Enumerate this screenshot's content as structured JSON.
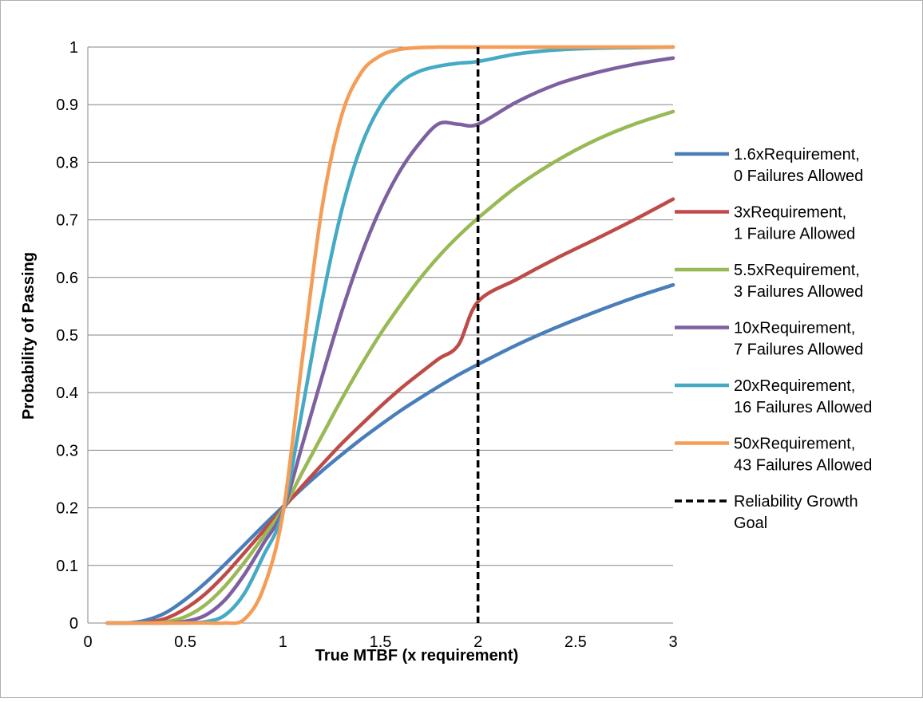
{
  "chart_data": {
    "type": "line",
    "title": "",
    "xlabel": "True MTBF (x requirement)",
    "ylabel": "Probability of Passing",
    "xlim": [
      0,
      3
    ],
    "ylim": [
      0,
      1
    ],
    "x_ticks": [
      "0",
      "0.5",
      "1",
      "1.5",
      "2",
      "2.5",
      "3"
    ],
    "y_ticks": [
      "0",
      "0.1",
      "0.2",
      "0.3",
      "0.4",
      "0.5",
      "0.6",
      "0.7",
      "0.8",
      "0.9",
      "1"
    ],
    "grid": "horizontal",
    "legend_position": "right",
    "x": [
      0.1,
      0.2,
      0.3,
      0.4,
      0.5,
      0.6,
      0.7,
      0.8,
      0.9,
      1.0,
      1.1,
      1.2,
      1.3,
      1.4,
      1.5,
      1.6,
      1.7,
      1.8,
      1.9,
      2.0,
      2.2,
      2.4,
      2.6,
      2.8,
      3.0
    ],
    "series": [
      {
        "name": "1.6xRequirement, 0 Failures Allowed",
        "label_lines": [
          "1.6xRequirement,",
          "0 Failures Allowed"
        ],
        "color": "#4a7ebb",
        "values": [
          0.0,
          0.0,
          0.005,
          0.018,
          0.041,
          0.069,
          0.101,
          0.135,
          0.169,
          0.202,
          0.234,
          0.264,
          0.292,
          0.319,
          0.344,
          0.368,
          0.39,
          0.411,
          0.431,
          0.449,
          0.483,
          0.513,
          0.54,
          0.565,
          0.587
        ]
      },
      {
        "name": "3xRequirement, 1 Failure Allowed",
        "label_lines": [
          "3xRequirement,",
          "1 Failure Allowed"
        ],
        "color": "#be4b48",
        "values": [
          0.0,
          0.0,
          0.001,
          0.008,
          0.025,
          0.05,
          0.083,
          0.121,
          0.16,
          0.199,
          0.238,
          0.275,
          0.311,
          0.344,
          0.376,
          0.406,
          0.433,
          0.459,
          0.483,
          0.558,
          0.597,
          0.633,
          0.666,
          0.7,
          0.736
        ]
      },
      {
        "name": "5.5xRequirement, 3 Failures Allowed",
        "label_lines": [
          "5.5xRequirement,",
          "3 Failures Allowed"
        ],
        "color": "#98b954",
        "values": [
          0.0,
          0.0,
          0.0,
          0.002,
          0.011,
          0.031,
          0.063,
          0.104,
          0.15,
          0.198,
          0.262,
          0.325,
          0.388,
          0.447,
          0.502,
          0.551,
          0.597,
          0.637,
          0.672,
          0.703,
          0.758,
          0.802,
          0.838,
          0.866,
          0.888
        ]
      },
      {
        "name": "10xRequirement, 7 Failures Allowed",
        "label_lines": [
          "10xRequirement,",
          "7 Failures Allowed"
        ],
        "color": "#7d60a0",
        "values": [
          0.0,
          0.0,
          0.0,
          0.0,
          0.003,
          0.013,
          0.039,
          0.083,
          0.138,
          0.195,
          0.31,
          0.427,
          0.539,
          0.638,
          0.72,
          0.785,
          0.833,
          0.867,
          0.866,
          0.866,
          0.905,
          0.935,
          0.955,
          0.97,
          0.981
        ]
      },
      {
        "name": "20xRequirement, 16 Failures Allowed",
        "label_lines": [
          "20xRequirement,",
          "16 Failures Allowed"
        ],
        "color": "#46aac5",
        "values": [
          0.0,
          0.0,
          0.0,
          0.0,
          0.0,
          0.002,
          0.013,
          0.05,
          0.117,
          0.193,
          0.372,
          0.558,
          0.715,
          0.827,
          0.898,
          0.938,
          0.958,
          0.967,
          0.972,
          0.975,
          0.988,
          0.995,
          0.998,
          0.999,
          1.0
        ]
      },
      {
        "name": "50xRequirement, 43 Failures Allowed",
        "label_lines": [
          "50xRequirement,",
          "43 Failures Allowed"
        ],
        "color": "#f59d56",
        "values": [
          0.0,
          0.0,
          0.0,
          0.0,
          0.0,
          0.0,
          0.0,
          0.006,
          0.06,
          0.19,
          0.46,
          0.72,
          0.88,
          0.955,
          0.985,
          0.996,
          0.999,
          1.0,
          1.0,
          1.0,
          1.0,
          1.0,
          1.0,
          1.0,
          1.0
        ]
      }
    ],
    "reference_line": {
      "name": "Reliability Growth Goal",
      "label_lines": [
        "Reliability Growth",
        "Goal"
      ],
      "x": 2,
      "color": "#000000",
      "style": "dashed"
    }
  }
}
